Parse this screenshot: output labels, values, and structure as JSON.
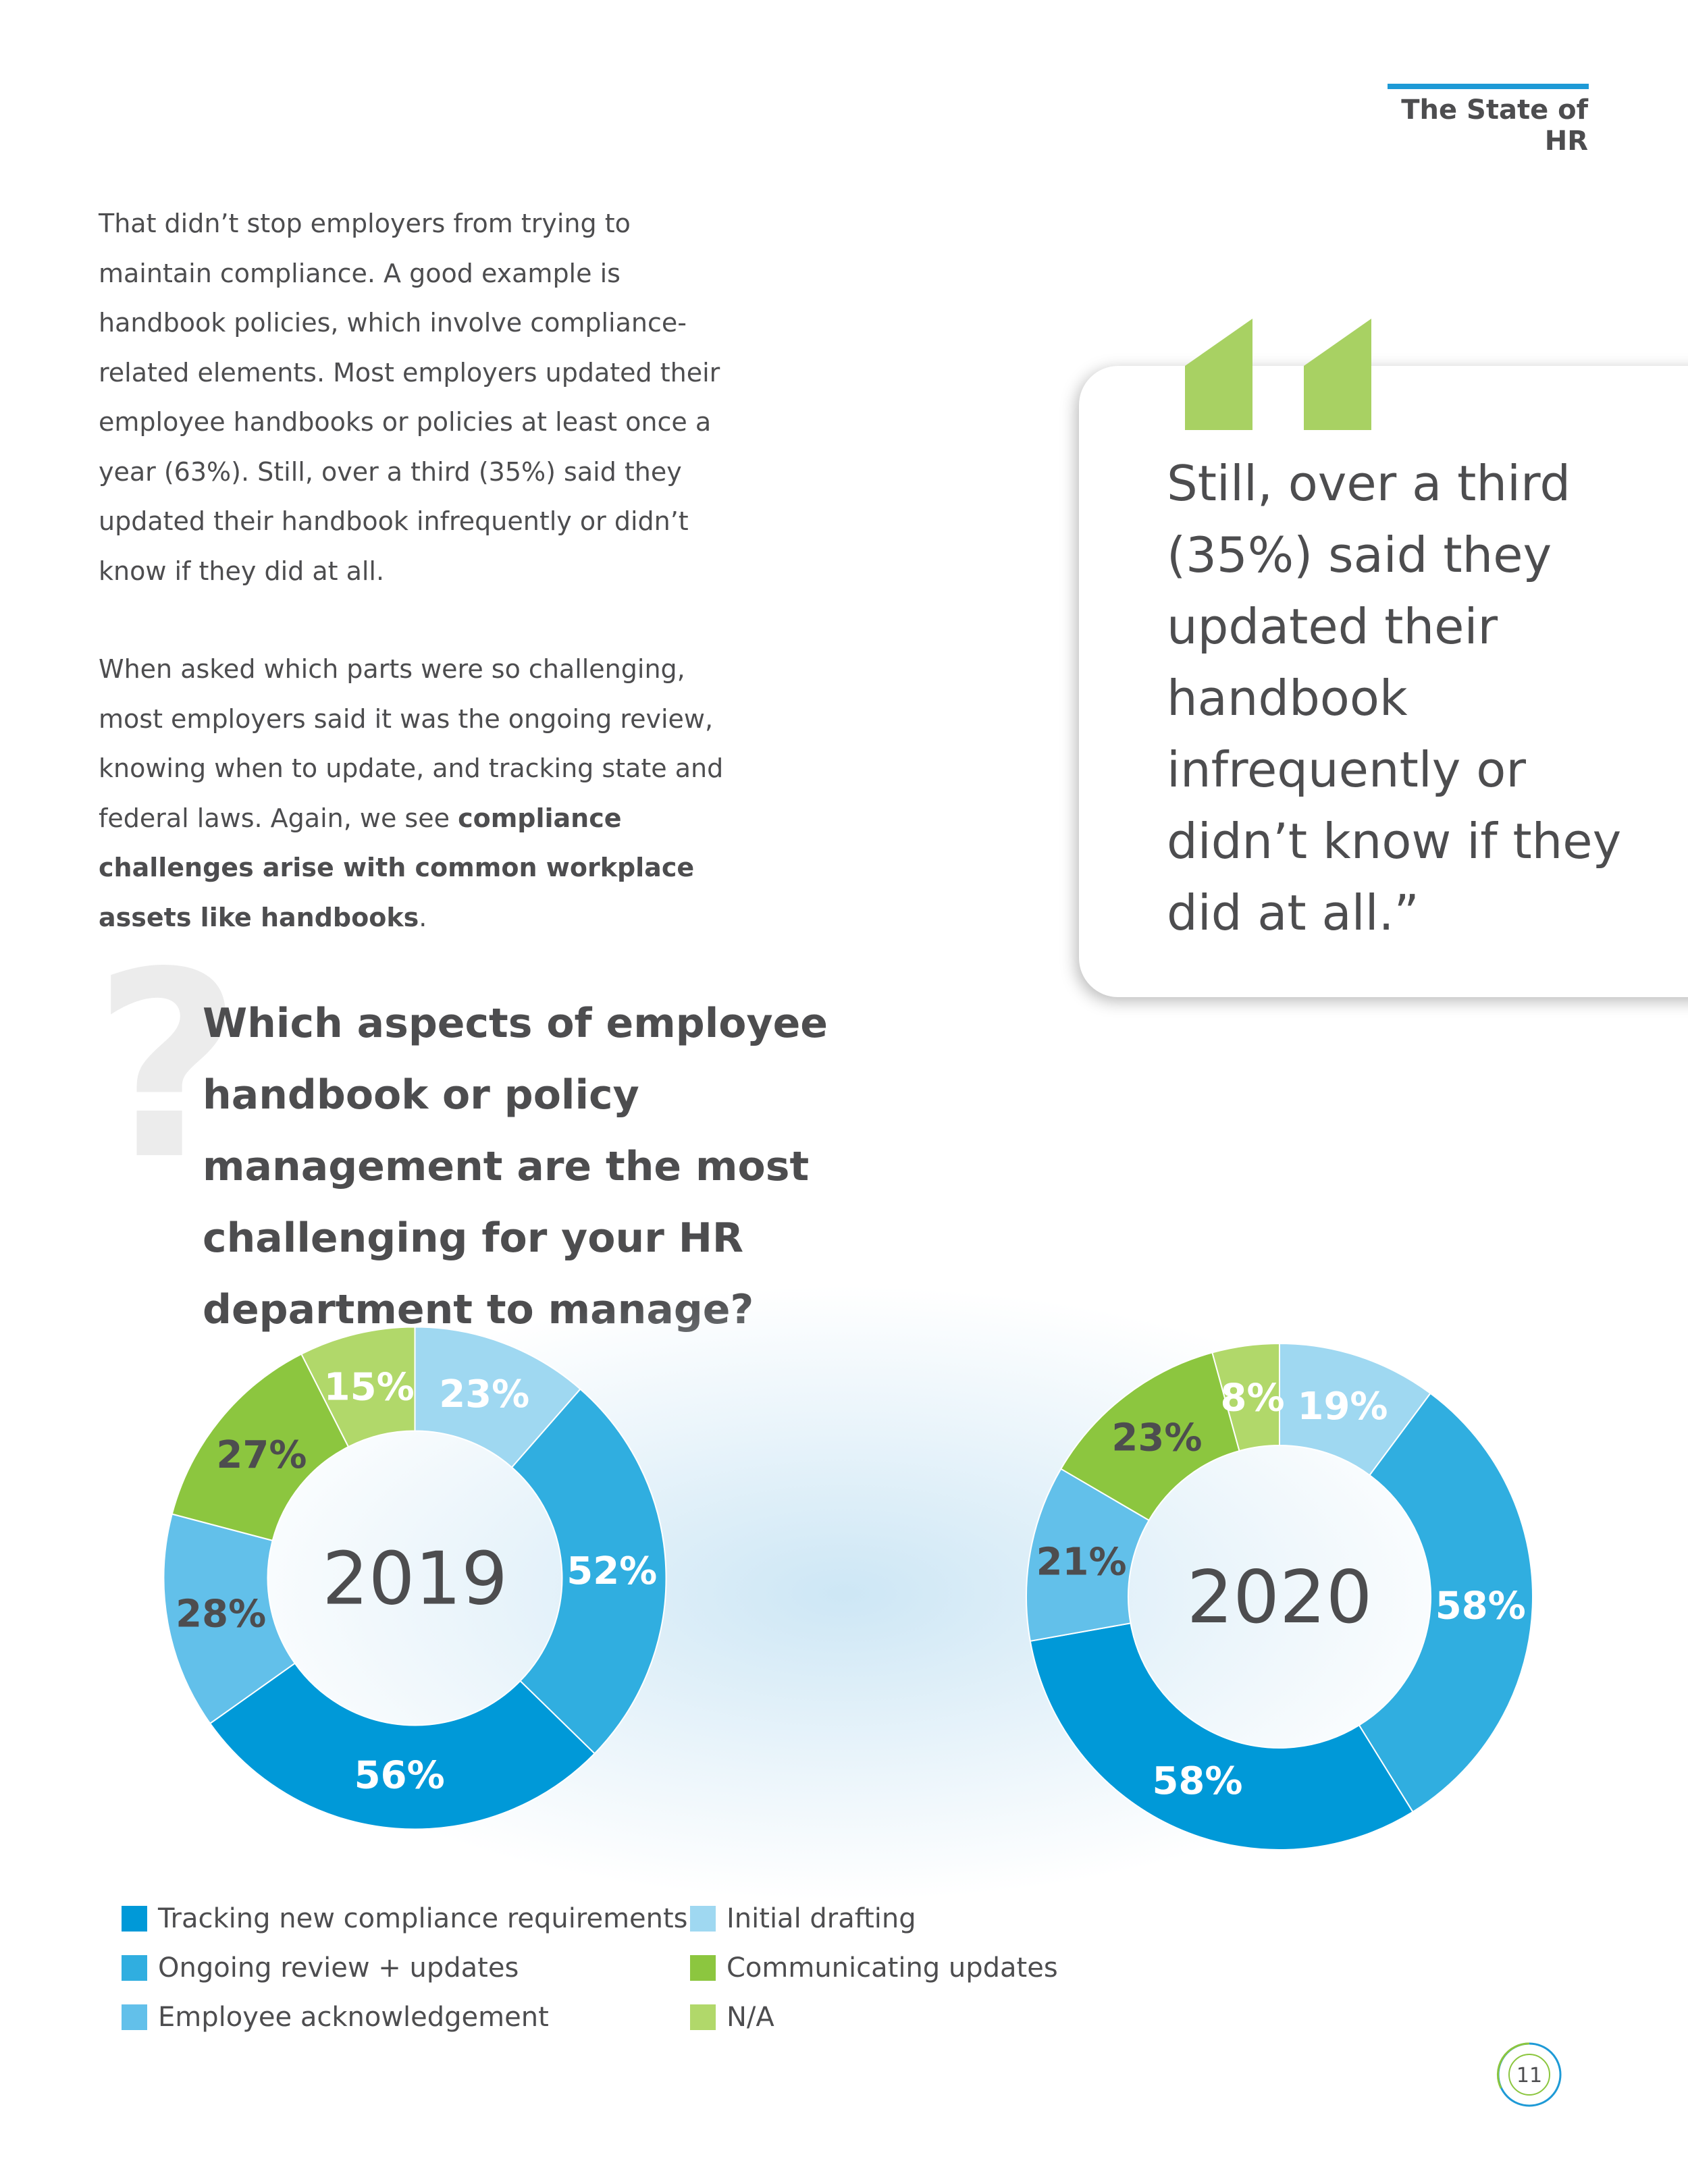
{
  "header": {
    "title": "The State of HR"
  },
  "body": {
    "p1": "That didn’t stop employers from trying to maintain compliance. A good example is handbook policies, which involve compliance-related elements. Most employers updated their employee handbooks or policies at least once a year (63%). Still, over a third (35%) said they updated their handbook infrequently or didn’t know if they did at all.",
    "p2_start": "When asked which parts were so challenging, most employers said it was the ongoing review, knowing when to update, and tracking state and federal laws. Again, we see ",
    "p2_bold": "compliance challenges arise with common workplace assets like handbooks",
    "p2_end": "."
  },
  "quote": {
    "text": "Still, over a third (35%) said they updated their handbook infrequently or didn’t know if they did at all.”"
  },
  "question": {
    "mark": "?",
    "text": "Which aspects of employee handbook or policy management are the most challenging for your HR department to manage?"
  },
  "colors": {
    "tracking": "#0099d8",
    "ongoing": "#30aee0",
    "acknowledgement": "#62c0ea",
    "drafting": "#9fd8f1",
    "communicating": "#8cc63f",
    "na": "#b1d86a",
    "quote_green": "#a8d163",
    "text": "#4d4d4f",
    "header_rule": "#1e9ad6"
  },
  "chart_data": [
    {
      "type": "pie",
      "variant": "donut",
      "center_label": "2019",
      "categories": [
        "Initial drafting",
        "Ongoing review + updates",
        "Tracking new compliance requirements",
        "Employee acknowledgement",
        "Communicating updates",
        "N/A"
      ],
      "values": [
        23,
        52,
        56,
        28,
        27,
        15
      ],
      "labels": [
        "23%",
        "52%",
        "56%",
        "28%",
        "27%",
        "15%"
      ]
    },
    {
      "type": "pie",
      "variant": "donut",
      "center_label": "2020",
      "categories": [
        "Initial drafting",
        "Ongoing review + updates",
        "Tracking new compliance requirements",
        "Employee acknowledgement",
        "Communicating updates",
        "N/A"
      ],
      "values": [
        19,
        58,
        58,
        21,
        23,
        8
      ],
      "labels": [
        "19%",
        "58%",
        "58%",
        "21%",
        "23%",
        "8%"
      ]
    }
  ],
  "legend": [
    {
      "label": "Tracking new compliance requirements",
      "color": "#0099d8"
    },
    {
      "label": "Ongoing review + updates",
      "color": "#30aee0"
    },
    {
      "label": "Employee acknowledgement",
      "color": "#62c0ea"
    },
    {
      "label": "Initial drafting",
      "color": "#9fd8f1"
    },
    {
      "label": "Communicating updates",
      "color": "#8cc63f"
    },
    {
      "label": "N/A",
      "color": "#b1d86a"
    }
  ],
  "page": {
    "number": "11"
  }
}
